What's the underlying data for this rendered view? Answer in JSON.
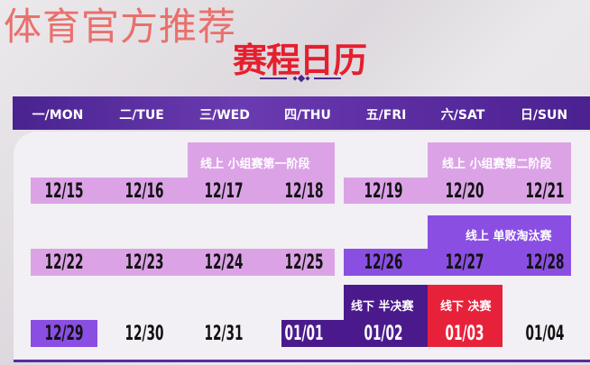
{
  "watermark": "体育官方推荐",
  "title": "赛程日历",
  "days": [
    "一/MON",
    "二/TUE",
    "三/WED",
    "四/THU",
    "五/FRI",
    "六/SAT",
    "日/SUN"
  ],
  "stages": {
    "group1": "线上 小组赛第一阶段",
    "group2": "线上 小组赛第二阶段",
    "knockout": "线上 单败淘汰赛",
    "semifinal": "线下 半决赛",
    "final": "线下 决赛"
  },
  "weeks": [
    [
      "12/15",
      "12/16",
      "12/17",
      "12/18",
      "12/19",
      "12/20",
      "12/21"
    ],
    [
      "12/22",
      "12/23",
      "12/24",
      "12/25",
      "12/26",
      "12/27",
      "12/28"
    ],
    [
      "12/29",
      "12/30",
      "12/31",
      "01/01",
      "01/02",
      "01/03",
      "01/04"
    ]
  ],
  "colors": {
    "light_purple": "#dba3e6",
    "purple": "#8a4fe2",
    "dark_purple": "#4a1a8c",
    "red": "#e8213a",
    "title_red": "#e51f2e"
  }
}
